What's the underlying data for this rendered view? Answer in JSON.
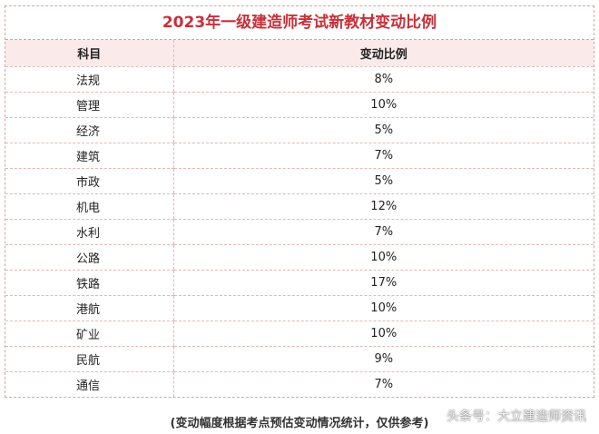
{
  "title": "2023年一级建造师考试新教材变动比例",
  "headers": {
    "subject": "科目",
    "ratio": "变动比例"
  },
  "rows": [
    {
      "subject": "法规",
      "ratio": "8%"
    },
    {
      "subject": "管理",
      "ratio": "10%"
    },
    {
      "subject": "经济",
      "ratio": "5%"
    },
    {
      "subject": "建筑",
      "ratio": "7%"
    },
    {
      "subject": "市政",
      "ratio": "5%"
    },
    {
      "subject": "机电",
      "ratio": "12%"
    },
    {
      "subject": "水利",
      "ratio": "7%"
    },
    {
      "subject": "公路",
      "ratio": "10%"
    },
    {
      "subject": "铁路",
      "ratio": "17%"
    },
    {
      "subject": "港航",
      "ratio": "10%"
    },
    {
      "subject": "矿业",
      "ratio": "10%"
    },
    {
      "subject": "民航",
      "ratio": "9%"
    },
    {
      "subject": "通信",
      "ratio": "7%"
    }
  ],
  "footnote": "(变动幅度根据考点预估变动情况统计，仅供参考)",
  "watermark": "头条号：大立建造师资讯"
}
